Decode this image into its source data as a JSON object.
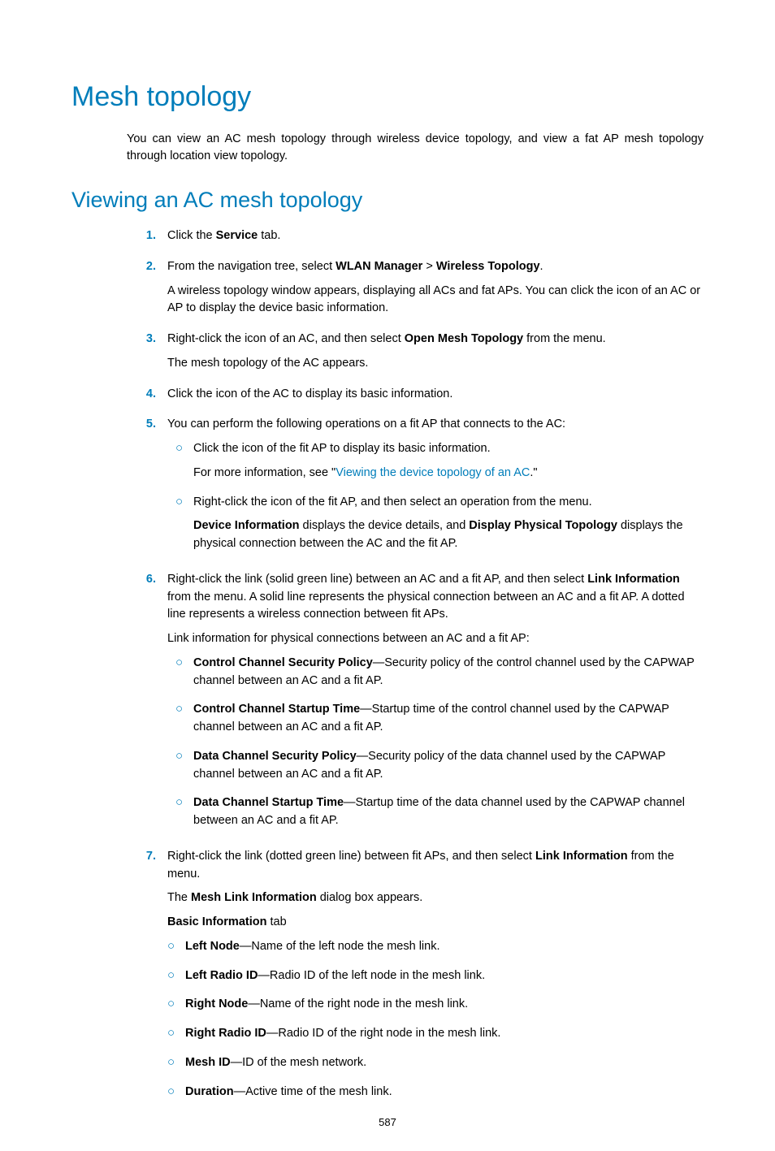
{
  "colors": {
    "accent": "#007dba",
    "text": "#000000",
    "background": "#ffffff"
  },
  "typography": {
    "h1_fontsize_pt": 26,
    "h2_fontsize_pt": 20,
    "body_fontsize_pt": 11,
    "font_family": "Arial"
  },
  "title": "Mesh topology",
  "intro": "You can view an AC mesh topology through wireless device topology, and view a fat AP mesh topology through location view topology.",
  "subtitle": "Viewing an AC mesh topology",
  "steps": {
    "s1": {
      "num": "1.",
      "t1a": "Click the ",
      "t1b": "Service",
      "t1c": " tab."
    },
    "s2": {
      "num": "2.",
      "t1a": "From the navigation tree, select ",
      "t1b": "WLAN Manager",
      "t1c": " > ",
      "t1d": "Wireless Topology",
      "t1e": ".",
      "t2": "A wireless topology window appears, displaying all ACs and fat APs. You can click the icon of an AC or AP to display the device basic information."
    },
    "s3": {
      "num": "3.",
      "t1a": "Right-click the icon of an AC, and then select ",
      "t1b": "Open Mesh Topology",
      "t1c": " from the menu.",
      "t2": "The mesh topology of the AC appears."
    },
    "s4": {
      "num": "4.",
      "t1": "Click the icon of the AC to display its basic information."
    },
    "s5": {
      "num": "5.",
      "t1": "You can perform the following operations on a fit AP that connects to the AC:",
      "a": {
        "t1": "Click the icon of the fit AP to display its basic information.",
        "t2a": "For more information, see \"",
        "t2b": "Viewing the device topology of an AC",
        "t2c": ".\""
      },
      "b": {
        "t1": "Right-click the icon of the fit AP, and then select an operation from the menu.",
        "t2a": "Device Information",
        "t2b": " displays the device details, and ",
        "t2c": "Display Physical Topology",
        "t2d": " displays the physical connection between the AC and the fit AP."
      }
    },
    "s6": {
      "num": "6.",
      "t1a": "Right-click the link (solid green line) between an AC and a fit AP, and then select ",
      "t1b": "Link Information",
      "t1c": " from the menu. A solid line represents the physical connection between an AC and a fit AP. A dotted line represents a wireless connection between fit APs.",
      "t2": "Link information for physical connections between an AC and a fit AP:",
      "a": {
        "b": "Control Channel Security Policy",
        "t": "—Security policy of the control channel used by the CAPWAP channel between an AC and a fit AP."
      },
      "b": {
        "b": "Control Channel Startup Time",
        "t": "—Startup time of the control channel used by the CAPWAP channel between an AC and a fit AP."
      },
      "c": {
        "b": "Data Channel Security Policy",
        "t": "—Security policy of the data channel used by the CAPWAP channel between an AC and a fit AP."
      },
      "d": {
        "b": "Data Channel Startup Time",
        "t": "—Startup time of the data channel used by the CAPWAP channel between an AC and a fit AP."
      }
    },
    "s7": {
      "num": "7.",
      "t1a": "Right-click the link (dotted green line) between fit APs, and then select ",
      "t1b": "Link Information",
      "t1c": " from the menu.",
      "t2a": "The ",
      "t2b": "Mesh Link Information",
      "t2c": " dialog box appears.",
      "t3a": "Basic Information",
      "t3b": " tab",
      "a": {
        "b": "Left Node",
        "t": "—Name of the left node the mesh link."
      },
      "b": {
        "b": "Left Radio ID",
        "t": "—Radio ID of the left node in the mesh link."
      },
      "c": {
        "b": "Right Node",
        "t": "—Name of the right node in the mesh link."
      },
      "d": {
        "b": "Right Radio ID",
        "t": "—Radio ID of the right node in the mesh link."
      },
      "e": {
        "b": "Mesh ID",
        "t": "—ID of the mesh network."
      },
      "f": {
        "b": "Duration",
        "t": "—Active time of the mesh link."
      }
    }
  },
  "page_number": "587"
}
